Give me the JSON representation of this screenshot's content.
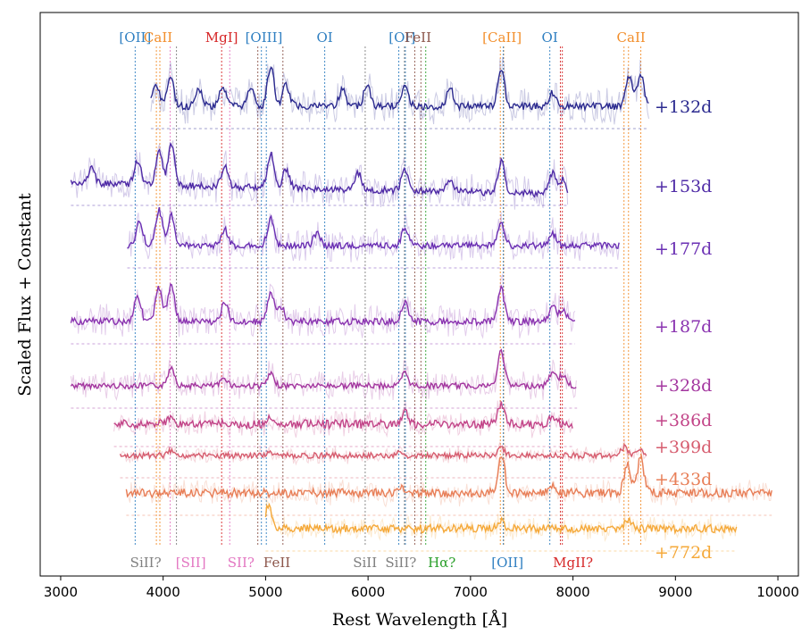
{
  "chart_data": {
    "type": "line",
    "title": "",
    "xlabel": "Rest Wavelength [Å]",
    "ylabel": "Scaled Flux + Constant",
    "xlim": [
      2800,
      10200
    ],
    "xticks": [
      3000,
      4000,
      5000,
      6000,
      7000,
      8000,
      9000,
      10000
    ],
    "yticks_shown": false,
    "grid": false,
    "series": [
      {
        "name": "+132d",
        "color": "#2b2a8f",
        "xrange": [
          3880,
          8740
        ],
        "baseline": 0.0,
        "features": [
          [
            3930,
            0.55
          ],
          [
            4070,
            0.75
          ],
          [
            4350,
            0.45
          ],
          [
            4580,
            0.5
          ],
          [
            4860,
            0.5
          ],
          [
            5050,
            1.0
          ],
          [
            5200,
            0.55
          ],
          [
            5750,
            0.45
          ],
          [
            5990,
            0.55
          ],
          [
            6360,
            0.6
          ],
          [
            6800,
            0.45
          ],
          [
            7300,
            0.9
          ],
          [
            7800,
            0.35
          ],
          [
            8550,
            0.8
          ],
          [
            8660,
            0.85
          ]
        ]
      },
      {
        "name": "+153d",
        "color": "#4f2ba6",
        "xrange": [
          3100,
          7950
        ],
        "baseline": 0.0,
        "features": [
          [
            3300,
            0.4
          ],
          [
            3750,
            0.65
          ],
          [
            3960,
            0.9
          ],
          [
            4080,
            1.1
          ],
          [
            4600,
            0.55
          ],
          [
            5050,
            0.9
          ],
          [
            5200,
            0.5
          ],
          [
            5900,
            0.45
          ],
          [
            6360,
            0.6
          ],
          [
            6800,
            0.35
          ],
          [
            7300,
            0.85
          ],
          [
            7800,
            0.55
          ],
          [
            7900,
            0.4
          ]
        ]
      },
      {
        "name": "+177d",
        "color": "#6a2fb3",
        "xrange": [
          3650,
          8460
        ],
        "baseline": 0.0,
        "features": [
          [
            3770,
            0.7
          ],
          [
            3960,
            1.0
          ],
          [
            4080,
            0.85
          ],
          [
            4600,
            0.45
          ],
          [
            5050,
            0.75
          ],
          [
            5500,
            0.35
          ],
          [
            6360,
            0.5
          ],
          [
            7300,
            0.65
          ],
          [
            7800,
            0.35
          ]
        ]
      },
      {
        "name": "+187d",
        "color": "#8a33b0",
        "xrange": [
          3100,
          8020
        ],
        "baseline": 0.0,
        "features": [
          [
            3750,
            0.7
          ],
          [
            3960,
            0.9
          ],
          [
            4080,
            1.0
          ],
          [
            4600,
            0.5
          ],
          [
            5050,
            0.75
          ],
          [
            5150,
            0.4
          ],
          [
            6360,
            0.55
          ],
          [
            7300,
            0.85
          ],
          [
            7800,
            0.4
          ],
          [
            7900,
            0.35
          ]
        ]
      },
      {
        "name": "+328d",
        "color": "#a3369f",
        "xrange": [
          3100,
          8040
        ],
        "baseline": 0.0,
        "features": [
          [
            4080,
            0.6
          ],
          [
            4600,
            0.25
          ],
          [
            5050,
            0.35
          ],
          [
            6360,
            0.4
          ],
          [
            7300,
            1.1
          ],
          [
            7800,
            0.45
          ],
          [
            7900,
            0.35
          ]
        ]
      },
      {
        "name": "+386d",
        "color": "#c24488",
        "xrange": [
          3520,
          8000
        ],
        "baseline": 0.0,
        "features": [
          [
            4080,
            0.35
          ],
          [
            5050,
            0.3
          ],
          [
            6360,
            0.45
          ],
          [
            7300,
            0.85
          ],
          [
            7800,
            0.3
          ]
        ]
      },
      {
        "name": "+399d",
        "color": "#d65c6e",
        "xrange": [
          3580,
          8720
        ],
        "baseline": 0.0,
        "features": [
          [
            4080,
            0.3
          ],
          [
            5050,
            0.2
          ],
          [
            6300,
            0.2
          ],
          [
            7300,
            0.45
          ],
          [
            8500,
            0.5
          ],
          [
            8650,
            0.45
          ]
        ]
      },
      {
        "name": "+433d",
        "color": "#e87f58",
        "xrange": [
          3640,
          9940
        ],
        "baseline": 0.0,
        "features": [
          [
            6300,
            0.3
          ],
          [
            7300,
            1.6
          ],
          [
            7800,
            0.25
          ],
          [
            8530,
            1.1
          ],
          [
            8660,
            1.4
          ]
        ]
      },
      {
        "name": "+772d",
        "color": "#f5a93a",
        "xrange": [
          5000,
          9600
        ],
        "baseline": 0.0,
        "features": [
          [
            5030,
            1.0
          ],
          [
            7300,
            0.4
          ],
          [
            8540,
            0.4
          ]
        ]
      }
    ],
    "top_lines": [
      {
        "label": "[OII]",
        "color": "#2f7fc1",
        "wavelengths": [
          3727
        ]
      },
      {
        "label": "CaII",
        "color": "#f28e2b",
        "wavelengths": [
          3934,
          3968
        ]
      },
      {
        "label": "MgI]",
        "color": "#d62728",
        "wavelengths": [
          4571
        ]
      },
      {
        "label": "[OIII]",
        "color": "#2f7fc1",
        "wavelengths": [
          4959,
          5007
        ]
      },
      {
        "label": "OI",
        "color": "#2f7fc1",
        "wavelengths": [
          5577
        ]
      },
      {
        "label": "[OI]",
        "color": "#2f7fc1",
        "wavelengths": [
          6300,
          6364
        ]
      },
      {
        "label": "FeII",
        "color": "#8c564b",
        "wavelengths": [
          6456,
          6516
        ]
      },
      {
        "label": "[CaII]",
        "color": "#f28e2b",
        "wavelengths": [
          7291,
          7324
        ]
      },
      {
        "label": "OI",
        "color": "#2f7fc1",
        "wavelengths": [
          7774
        ]
      },
      {
        "label": "CaII",
        "color": "#f28e2b",
        "wavelengths": [
          8498,
          8542,
          8662
        ]
      }
    ],
    "bottom_lines": [
      {
        "label": "SiII?",
        "color": "#7f7f7f",
        "wavelengths": [
          4130
        ]
      },
      {
        "label": "[SII]",
        "color": "#e377c2",
        "wavelengths": [
          4069
        ]
      },
      {
        "label": "SII?",
        "color": "#e377c2",
        "wavelengths": [
          4650
        ]
      },
      {
        "label": "FeII",
        "color": "#8c564b",
        "wavelengths": [
          5169,
          4924
        ]
      },
      {
        "label": "SiII",
        "color": "#7f7f7f",
        "wavelengths": [
          5972
        ]
      },
      {
        "label": "SiII?",
        "color": "#7f7f7f",
        "wavelengths": [
          6355
        ]
      },
      {
        "label": "Hα?",
        "color": "#2ca02c",
        "wavelengths": [
          6563
        ]
      },
      {
        "label": "[OII]",
        "color": "#2f7fc1",
        "wavelengths": [
          7320
        ]
      },
      {
        "label": "MgII?",
        "color": "#d62728",
        "wavelengths": [
          7896,
          7877
        ]
      }
    ]
  }
}
